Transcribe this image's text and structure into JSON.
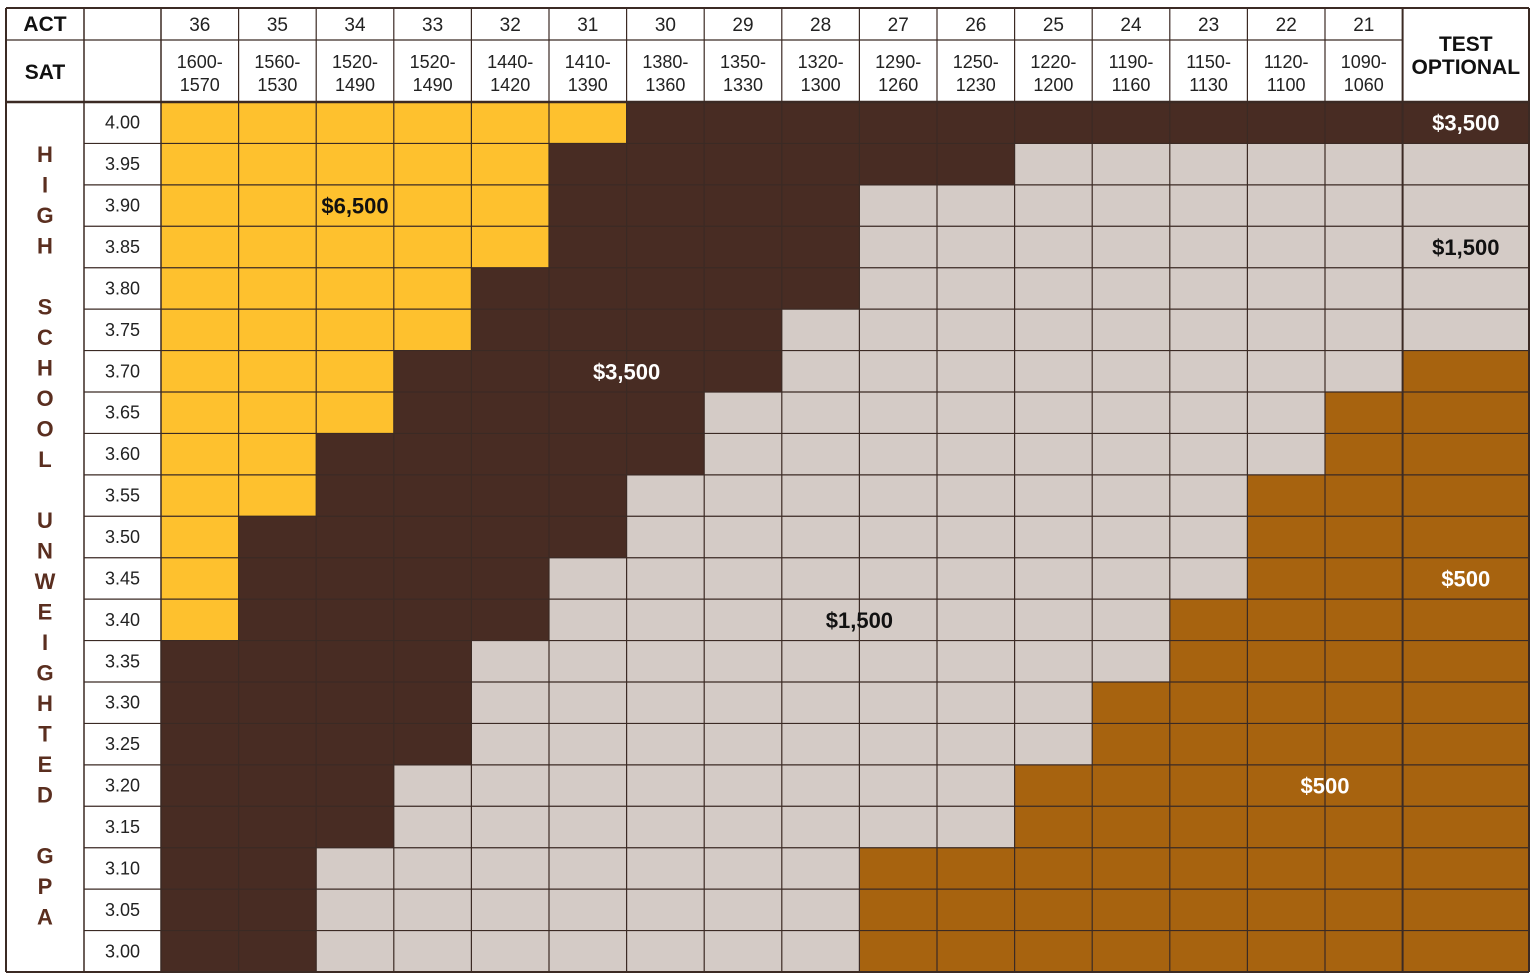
{
  "header": {
    "act_label": "ACT",
    "sat_label": "SAT",
    "test_optional_line1": "TEST",
    "test_optional_line2": "OPTIONAL"
  },
  "side_label_letters": [
    "H",
    "I",
    "G",
    "H",
    "",
    "S",
    "C",
    "H",
    "O",
    "O",
    "L",
    "",
    "U",
    "N",
    "W",
    "E",
    "I",
    "G",
    "H",
    "T",
    "E",
    "D",
    "",
    "G",
    "P",
    "A"
  ],
  "chart_data": {
    "type": "table",
    "title": "",
    "columns": [
      {
        "act": "36",
        "sat": [
          "1600-",
          "1570"
        ]
      },
      {
        "act": "35",
        "sat": [
          "1560-",
          "1530"
        ]
      },
      {
        "act": "34",
        "sat": [
          "1520-",
          "1490"
        ]
      },
      {
        "act": "33",
        "sat": [
          "1520-",
          "1490"
        ]
      },
      {
        "act": "32",
        "sat": [
          "1440-",
          "1420"
        ]
      },
      {
        "act": "31",
        "sat": [
          "1410-",
          "1390"
        ]
      },
      {
        "act": "30",
        "sat": [
          "1380-",
          "1360"
        ]
      },
      {
        "act": "29",
        "sat": [
          "1350-",
          "1330"
        ]
      },
      {
        "act": "28",
        "sat": [
          "1320-",
          "1300"
        ]
      },
      {
        "act": "27",
        "sat": [
          "1290-",
          "1260"
        ]
      },
      {
        "act": "26",
        "sat": [
          "1250-",
          "1230"
        ]
      },
      {
        "act": "25",
        "sat": [
          "1220-",
          "1200"
        ]
      },
      {
        "act": "24",
        "sat": [
          "1190-",
          "1160"
        ]
      },
      {
        "act": "23",
        "sat": [
          "1150-",
          "1130"
        ]
      },
      {
        "act": "22",
        "sat": [
          "1120-",
          "1100"
        ]
      },
      {
        "act": "21",
        "sat": [
          "1090-",
          "1060"
        ]
      }
    ],
    "gpa_rows": [
      "4.00",
      "3.95",
      "3.90",
      "3.85",
      "3.80",
      "3.75",
      "3.70",
      "3.65",
      "3.60",
      "3.55",
      "3.50",
      "3.45",
      "3.40",
      "3.35",
      "3.30",
      "3.25",
      "3.20",
      "3.15",
      "3.10",
      "3.05",
      "3.00"
    ],
    "award_levels": {
      "A": {
        "amount": "$6,500",
        "color": "#fec12e"
      },
      "B": {
        "amount": "$3,500",
        "color": "#482c23"
      },
      "C": {
        "amount": "$1,500",
        "color": "#d4cbc6"
      },
      "D": {
        "amount": "$500",
        "color": "#a7630f"
      }
    },
    "cells": [
      "AAAAAABBBBBBBBBB",
      "AAAAABBBBBBCCCCC",
      "AAAAABBBBCCCCCCC",
      "AAAAABBBBCCCCCCC",
      "AAAABBBBBCCCCCCC",
      "AAAABBBBCCCCCCCC",
      "AAABBBBBCCCCCCCC",
      "AAABBBBCCCCCCCCD",
      "AABBBBBCCCCCCCCD",
      "AABBBBCCCCCCCCDD",
      "ABBBBBCCCCCCCCDD",
      "ABBBBCCCCCCCCCDD",
      "ABBBBCCCCCCCCDDD",
      "BBBBCCCCCCCCCDDD",
      "BBBBCCCCCCCCDDDD",
      "BBBBCCCCCCCCDDDD",
      "BBBCCCCCCCCDDDDD",
      "BBBCCCCCCCCDDDDD",
      "BBCCCCCCCDDDDDDD",
      "BBCCCCCCCDDDDDDD",
      "BBCCCCCCCDDDDDDD"
    ],
    "test_optional_cells": [
      "B",
      "C",
      "C",
      "C",
      "C",
      "C",
      "D",
      "D",
      "D",
      "D",
      "D",
      "D",
      "D",
      "D",
      "D",
      "D",
      "D",
      "D",
      "D",
      "D",
      "D"
    ],
    "region_labels": [
      {
        "text": "$6,500",
        "row": 2,
        "col": 2,
        "color": "#111111"
      },
      {
        "text": "$3,500",
        "row": 6,
        "col": 5.5,
        "color": "#ffffff"
      },
      {
        "text": "$1,500",
        "row": 12,
        "col": 8.5,
        "color": "#111111"
      },
      {
        "text": "$500",
        "row": 16,
        "col": 14.5,
        "color": "#ffffff"
      }
    ],
    "test_optional_labels": [
      {
        "text": "$3,500",
        "row": 0,
        "color": "#ffffff"
      },
      {
        "text": "$1,500",
        "row": 3,
        "color": "#111111"
      },
      {
        "text": "$500",
        "row": 11,
        "color": "#ffffff"
      }
    ],
    "grid_line_color": "#3b2a24"
  }
}
